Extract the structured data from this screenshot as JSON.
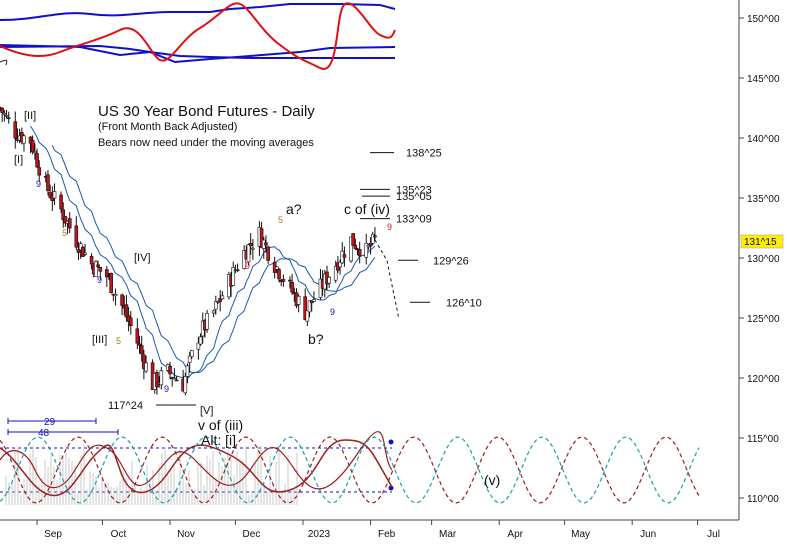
{
  "chart_data": {
    "type": "candlestick",
    "title": "US 30 Year Bond Futures - Daily",
    "subtitle": "(Front Month Back Adjusted)",
    "note": "Bears now need under the moving averages",
    "y_axis": {
      "side": "right",
      "ylim": [
        109,
        152
      ],
      "ticks": [
        {
          "value": 110,
          "label": "110^00"
        },
        {
          "value": 115,
          "label": "115^00"
        },
        {
          "value": 120,
          "label": "120^00"
        },
        {
          "value": 125,
          "label": "125^00"
        },
        {
          "value": 130,
          "label": "130^00"
        },
        {
          "value": 135,
          "label": "135^00"
        },
        {
          "value": 140,
          "label": "140^00"
        },
        {
          "value": 145,
          "label": "145^00"
        },
        {
          "value": 150,
          "label": "150^00"
        }
      ]
    },
    "x_axis": {
      "start": "2022-08-15",
      "end": "2023-07-20",
      "ticks": [
        {
          "date": "2022-09-01",
          "label": "Sep"
        },
        {
          "date": "2022-10-01",
          "label": "Oct"
        },
        {
          "date": "2022-11-01",
          "label": "Nov"
        },
        {
          "date": "2022-12-01",
          "label": "Dec"
        },
        {
          "date": "2023-01-01",
          "label": "2023"
        },
        {
          "date": "2023-02-01",
          "label": "Feb"
        },
        {
          "date": "2023-03-01",
          "label": "Mar"
        },
        {
          "date": "2023-04-01",
          "label": "Apr"
        },
        {
          "date": "2023-05-01",
          "label": "May"
        },
        {
          "date": "2023-06-01",
          "label": "Jun"
        },
        {
          "date": "2023-07-01",
          "label": "Jul"
        }
      ]
    },
    "price_path": [
      {
        "date": "2022-08-15",
        "close": 142.5
      },
      {
        "date": "2022-08-22",
        "close": 140.5
      },
      {
        "date": "2022-08-29",
        "close": 139.8
      },
      {
        "date": "2022-09-05",
        "close": 136.0
      },
      {
        "date": "2022-09-12",
        "close": 134.0
      },
      {
        "date": "2022-09-19",
        "close": 131.5
      },
      {
        "date": "2022-09-26",
        "close": 129.5
      },
      {
        "date": "2022-10-03",
        "close": 128.5
      },
      {
        "date": "2022-10-10",
        "close": 126.0
      },
      {
        "date": "2022-10-17",
        "close": 123.0
      },
      {
        "date": "2022-10-24",
        "close": 119.5
      },
      {
        "date": "2022-10-31",
        "close": 120.5
      },
      {
        "date": "2022-11-07",
        "close": 119.5
      },
      {
        "date": "2022-11-14",
        "close": 123.5
      },
      {
        "date": "2022-11-21",
        "close": 125.5
      },
      {
        "date": "2022-11-28",
        "close": 128.0
      },
      {
        "date": "2022-12-05",
        "close": 130.5
      },
      {
        "date": "2022-12-12",
        "close": 132.0
      },
      {
        "date": "2022-12-19",
        "close": 129.5
      },
      {
        "date": "2022-12-26",
        "close": 127.5
      },
      {
        "date": "2023-01-02",
        "close": 125.5
      },
      {
        "date": "2023-01-09",
        "close": 127.5
      },
      {
        "date": "2023-01-16",
        "close": 129.5
      },
      {
        "date": "2023-01-23",
        "close": 131.5
      },
      {
        "date": "2023-01-30",
        "close": 130.5
      },
      {
        "date": "2023-02-03",
        "close": 131.47
      }
    ],
    "levels": [
      {
        "label": "138^25",
        "value": 138.78
      },
      {
        "label": "135^23",
        "value": 135.72
      },
      {
        "label": "135^05",
        "value": 135.16
      },
      {
        "label": "133^09",
        "value": 133.28
      },
      {
        "label": "129^26",
        "value": 129.81
      },
      {
        "label": "126^10",
        "value": 126.31
      },
      {
        "label": "117^24",
        "value": 117.75
      }
    ],
    "last_price": {
      "label": "131^15",
      "value": 131.47
    },
    "wave_labels": [
      "[I]",
      "[II]",
      "[III]",
      "[IV]",
      "[V]",
      "a?",
      "b?",
      "c of (iv)",
      "v of (iii)",
      "Alt: [i]",
      "(v)"
    ],
    "count_labels": [
      "9",
      "5"
    ],
    "cycle_lengths": [
      "29",
      "48"
    ],
    "colors": {
      "bull": "#ffffff",
      "bear": "#c0141c",
      "ma": "#1c58b0",
      "indicator_red": "#e01010",
      "indicator_blue": "#1010c8",
      "cycle_red": "#9c1e1e",
      "cycle_teal": "#16a2a8",
      "last_price_box": "#ffee00"
    }
  }
}
